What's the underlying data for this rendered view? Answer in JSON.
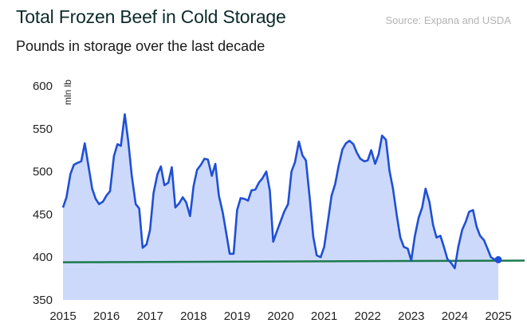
{
  "header": {
    "title": "Total Frozen Beef in Cold Storage",
    "subtitle": "Pounds in storage over the last decade",
    "source": "Source: Expana and USDA"
  },
  "colors": {
    "line": "#1f4fd6",
    "area": "#cdd9fa",
    "reference": "#1a7a4c",
    "marker": "#1f4fd6"
  },
  "chart_data": {
    "type": "area",
    "title": "Total Frozen Beef in Cold Storage",
    "subtitle": "Pounds in storage over the last decade",
    "ylabel": "mln lb",
    "xlabel": "",
    "ylim": [
      350,
      600
    ],
    "xlim": [
      2015,
      2025.6
    ],
    "yticks": [
      350,
      400,
      450,
      500,
      550,
      600
    ],
    "xticks": [
      2015,
      2016,
      2017,
      2018,
      2019,
      2020,
      2021,
      2022,
      2023,
      2024,
      2025
    ],
    "grid": false,
    "series": [
      {
        "x": [
          2015.0,
          2015.08,
          2015.17,
          2015.25,
          2015.33,
          2015.42,
          2015.5,
          2015.58,
          2015.67,
          2015.75,
          2015.83,
          2015.92,
          2016.0,
          2016.08,
          2016.17,
          2016.25,
          2016.33,
          2016.42,
          2016.5,
          2016.58,
          2016.67,
          2016.75,
          2016.83,
          2016.92,
          2017.0,
          2017.08,
          2017.17,
          2017.25,
          2017.33,
          2017.42,
          2017.5,
          2017.58,
          2017.67,
          2017.75,
          2017.83,
          2017.92,
          2018.0,
          2018.08,
          2018.17,
          2018.25,
          2018.33,
          2018.42,
          2018.5,
          2018.58,
          2018.67,
          2018.75,
          2018.83,
          2018.92,
          2019.0,
          2019.08,
          2019.17,
          2019.25,
          2019.33,
          2019.42,
          2019.5,
          2019.58,
          2019.67,
          2019.75,
          2019.83,
          2019.92,
          2020.0,
          2020.08,
          2020.17,
          2020.25,
          2020.33,
          2020.42,
          2020.5,
          2020.58,
          2020.67,
          2020.75,
          2020.83,
          2020.92,
          2021.0,
          2021.08,
          2021.17,
          2021.25,
          2021.33,
          2021.42,
          2021.5,
          2021.58,
          2021.67,
          2021.75,
          2021.83,
          2021.92,
          2022.0,
          2022.08,
          2022.17,
          2022.25,
          2022.33,
          2022.42,
          2022.5,
          2022.58,
          2022.67,
          2022.75,
          2022.83,
          2022.92,
          2023.0,
          2023.08,
          2023.17,
          2023.25,
          2023.33,
          2023.42,
          2023.5,
          2023.58,
          2023.67,
          2023.75,
          2023.83,
          2023.92,
          2024.0,
          2024.08,
          2024.17,
          2024.25,
          2024.33,
          2024.42,
          2024.5,
          2024.58,
          2024.67,
          2024.75,
          2024.83,
          2024.92,
          2025.0
        ],
        "values": [
          458,
          470,
          497,
          508,
          510,
          512,
          533,
          508,
          480,
          468,
          462,
          465,
          472,
          477,
          518,
          532,
          530,
          567,
          535,
          495,
          462,
          457,
          411,
          415,
          432,
          475,
          497,
          506,
          484,
          487,
          505,
          458,
          463,
          470,
          464,
          448,
          483,
          502,
          508,
          515,
          514,
          495,
          509,
          472,
          452,
          428,
          404,
          404,
          455,
          469,
          468,
          466,
          478,
          479,
          487,
          492,
          500,
          478,
          418,
          431,
          442,
          453,
          462,
          500,
          511,
          535,
          519,
          513,
          468,
          424,
          402,
          400,
          412,
          440,
          472,
          485,
          506,
          526,
          533,
          536,
          532,
          522,
          515,
          512,
          513,
          525,
          509,
          520,
          542,
          537,
          501,
          480,
          448,
          423,
          412,
          410,
          396,
          424,
          446,
          458,
          480,
          464,
          438,
          423,
          425,
          412,
          398,
          393,
          387,
          412,
          432,
          441,
          453,
          455,
          436,
          425,
          420,
          410,
          400,
          397,
          397
        ]
      }
    ],
    "reference_line": {
      "start": 394,
      "end": 396
    },
    "last_point": {
      "x": 2025.0,
      "value": 397
    }
  }
}
